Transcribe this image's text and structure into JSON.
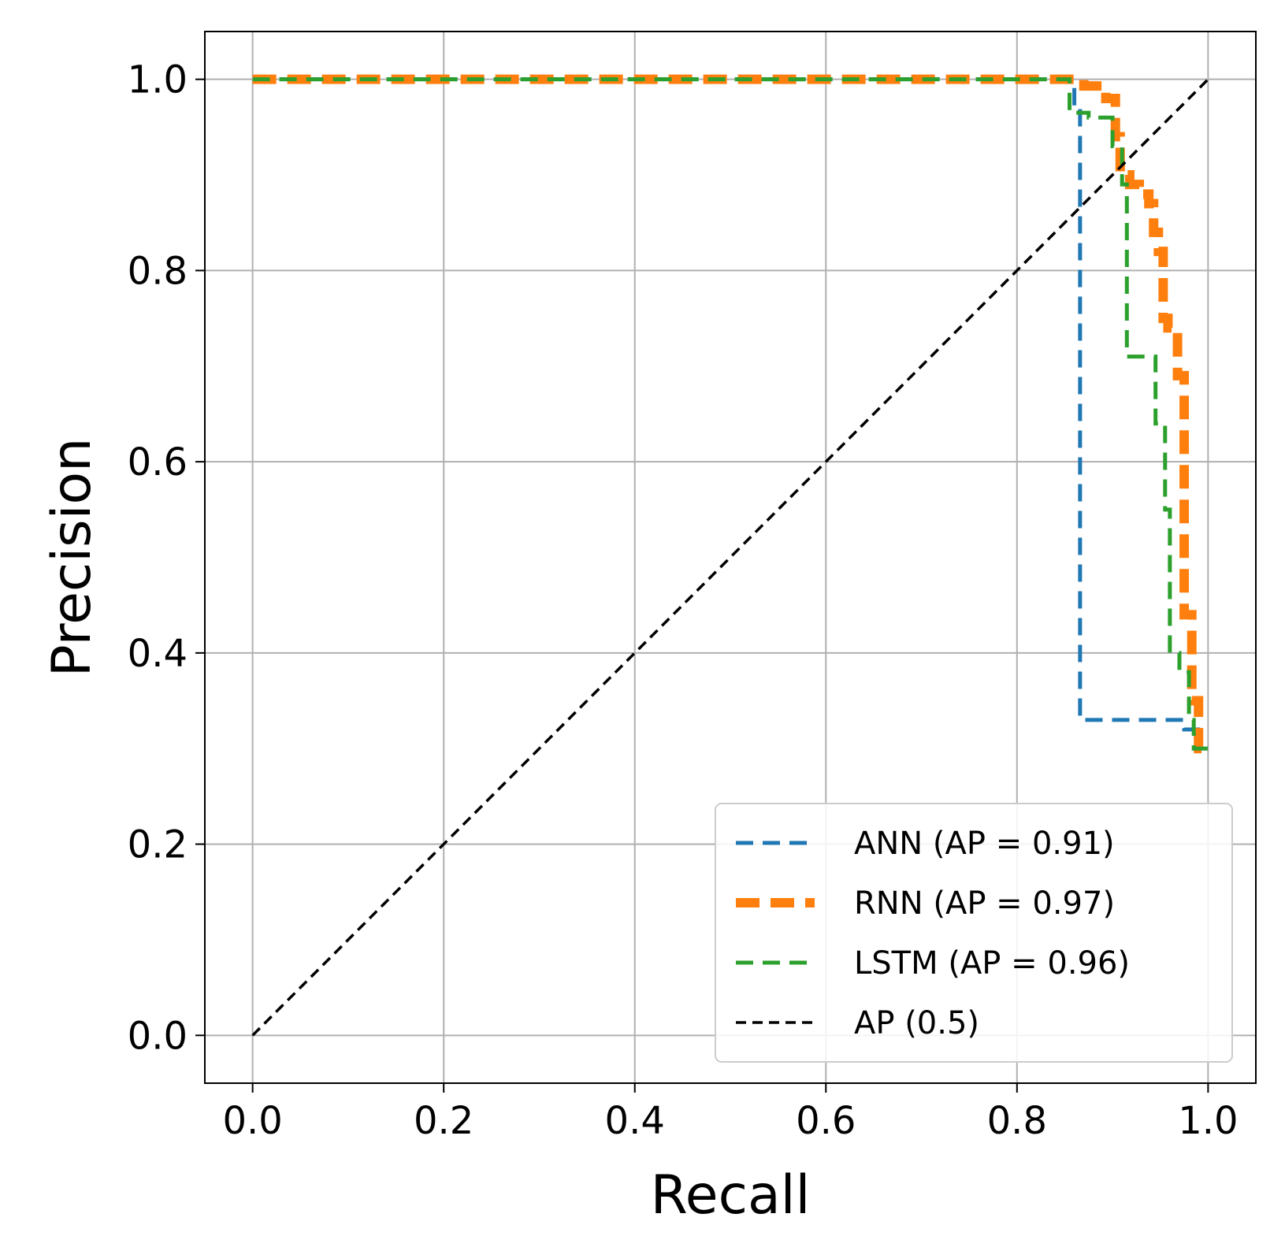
{
  "chart_data": {
    "type": "line",
    "title": "",
    "xlabel": "Recall",
    "ylabel": "Precision",
    "xlim": [
      -0.05,
      1.05
    ],
    "ylim": [
      -0.05,
      1.05
    ],
    "xticks": [
      "0.0",
      "0.2",
      "0.4",
      "0.6",
      "0.8",
      "1.0"
    ],
    "yticks": [
      "0.0",
      "0.2",
      "0.4",
      "0.6",
      "0.8",
      "1.0"
    ],
    "grid": true,
    "legend_position": "lower-right",
    "series": [
      {
        "name": "ANN (AP = 0.91)",
        "color": "#1f77b4",
        "style": "dashed",
        "x": [
          0.0,
          0.86,
          0.86,
          0.866,
          0.866,
          0.975,
          0.975,
          1.0
        ],
        "y": [
          1.0,
          1.0,
          0.97,
          0.97,
          0.33,
          0.33,
          0.32,
          0.32
        ]
      },
      {
        "name": "RNN (AP = 0.97)",
        "color": "#ff7f0e",
        "style": "dashed-thick",
        "x": [
          0.0,
          0.87,
          0.87,
          0.893,
          0.893,
          0.903,
          0.903,
          0.908,
          0.908,
          0.918,
          0.918,
          0.928,
          0.928,
          0.938,
          0.938,
          0.943,
          0.943,
          0.948,
          0.948,
          0.953,
          0.953,
          0.958,
          0.958,
          0.968,
          0.968,
          0.975,
          0.975,
          0.983,
          0.983,
          0.99,
          0.99,
          1.0
        ],
        "y": [
          1.0,
          1.0,
          0.993,
          0.993,
          0.98,
          0.98,
          0.94,
          0.94,
          0.9,
          0.9,
          0.89,
          0.89,
          0.88,
          0.88,
          0.87,
          0.87,
          0.84,
          0.84,
          0.82,
          0.82,
          0.75,
          0.75,
          0.74,
          0.74,
          0.69,
          0.69,
          0.44,
          0.44,
          0.35,
          0.35,
          0.3,
          0.3
        ]
      },
      {
        "name": "LSTM (AP = 0.96)",
        "color": "#2ca02c",
        "style": "dashed",
        "x": [
          0.0,
          0.855,
          0.855,
          0.875,
          0.875,
          0.9,
          0.9,
          0.91,
          0.91,
          0.915,
          0.915,
          0.945,
          0.945,
          0.955,
          0.955,
          0.96,
          0.96,
          0.97,
          0.97,
          0.98,
          0.98,
          0.985,
          0.985,
          1.0
        ],
        "y": [
          1.0,
          1.0,
          0.965,
          0.965,
          0.96,
          0.96,
          0.93,
          0.93,
          0.89,
          0.89,
          0.71,
          0.71,
          0.64,
          0.64,
          0.55,
          0.55,
          0.4,
          0.4,
          0.38,
          0.38,
          0.33,
          0.33,
          0.3,
          0.3
        ]
      },
      {
        "name": "AP (0.5)",
        "color": "#000000",
        "style": "dashed-thin",
        "x": [
          0.0,
          1.0
        ],
        "y": [
          0.0,
          1.0
        ]
      }
    ]
  }
}
